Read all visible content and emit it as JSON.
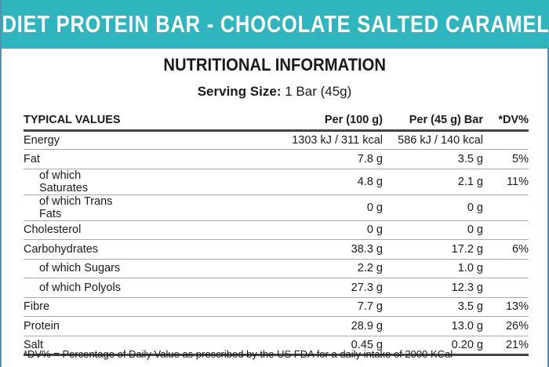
{
  "banner": "DIET PROTEIN BAR - CHOCOLATE SALTED CARAMEL",
  "title": "NUTRITIONAL INFORMATION",
  "serving": {
    "label": "Serving Size:",
    "value": "1 Bar (45g)"
  },
  "columns": [
    "TYPICAL VALUES",
    "Per (100 g)",
    "Per (45 g) Bar",
    "*DV%"
  ],
  "rows": [
    {
      "name": "Energy",
      "p100": "1303 kJ / 311 kcal",
      "p45": "586 kJ / 140 kcal",
      "dv": ""
    },
    {
      "name": "Fat",
      "p100": "7.8 g",
      "p45": "3.5 g",
      "dv": "5%"
    },
    {
      "name": "of which Saturates",
      "p100": "4.8 g",
      "p45": "2.1 g",
      "dv": "11%",
      "sub": true
    },
    {
      "name": "of which Trans Fats",
      "p100": "0 g",
      "p45": "0 g",
      "dv": "",
      "sub": true
    },
    {
      "name": "Cholesterol",
      "p100": "0 g",
      "p45": "0 g",
      "dv": ""
    },
    {
      "name": "Carbohydrates",
      "p100": "38.3 g",
      "p45": "17.2 g",
      "dv": "6%"
    },
    {
      "name": "of which Sugars",
      "p100": "2.2 g",
      "p45": "1.0 g",
      "dv": "",
      "sub": true
    },
    {
      "name": "of which Polyols",
      "p100": "27.3 g",
      "p45": "12.3 g",
      "dv": "",
      "sub": true
    },
    {
      "name": "Fibre",
      "p100": "7.7 g",
      "p45": "3.5 g",
      "dv": "13%"
    },
    {
      "name": "Protein",
      "p100": "28.9 g",
      "p45": "13.0 g",
      "dv": "26%"
    },
    {
      "name": "Salt",
      "p100": "0.45 g",
      "p45": "0.20 g",
      "dv": "21%"
    }
  ],
  "footnote": "*DV% = Percentage of Daily Value as prescribed by the US FDA for a daily intake of 2000 KCal"
}
